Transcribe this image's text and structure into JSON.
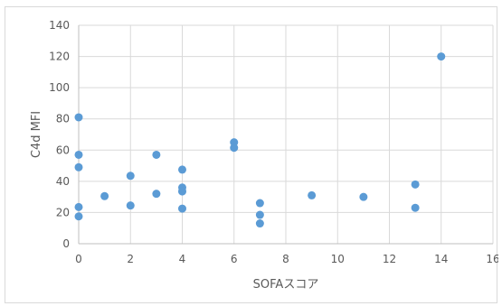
{
  "chart_data": {
    "type": "scatter",
    "title": "",
    "xlabel": "SOFAスコア",
    "ylabel": "C4d MFI",
    "xlim": [
      0,
      16
    ],
    "ylim": [
      0,
      140
    ],
    "x_ticks": [
      0,
      2,
      4,
      6,
      8,
      10,
      12,
      14,
      16
    ],
    "y_ticks": [
      0,
      20,
      40,
      60,
      80,
      100,
      120,
      140
    ],
    "grid": "both",
    "legend": "none",
    "marker_color": "#5B9BD5",
    "series": [
      {
        "points": [
          {
            "x": 0,
            "y": 81
          },
          {
            "x": 0,
            "y": 57
          },
          {
            "x": 0,
            "y": 49
          },
          {
            "x": 0,
            "y": 23.5
          },
          {
            "x": 0,
            "y": 17.5
          },
          {
            "x": 1,
            "y": 30.5
          },
          {
            "x": 2,
            "y": 43.5
          },
          {
            "x": 2,
            "y": 24.5
          },
          {
            "x": 3,
            "y": 57
          },
          {
            "x": 3,
            "y": 32
          },
          {
            "x": 4,
            "y": 47.5
          },
          {
            "x": 4,
            "y": 36
          },
          {
            "x": 4,
            "y": 33.5
          },
          {
            "x": 4,
            "y": 22.5
          },
          {
            "x": 6,
            "y": 65
          },
          {
            "x": 6,
            "y": 61.5
          },
          {
            "x": 7,
            "y": 26
          },
          {
            "x": 7,
            "y": 18.5
          },
          {
            "x": 7,
            "y": 13
          },
          {
            "x": 9,
            "y": 31
          },
          {
            "x": 11,
            "y": 30
          },
          {
            "x": 13,
            "y": 38
          },
          {
            "x": 13,
            "y": 23
          },
          {
            "x": 14,
            "y": 120
          }
        ]
      }
    ]
  }
}
